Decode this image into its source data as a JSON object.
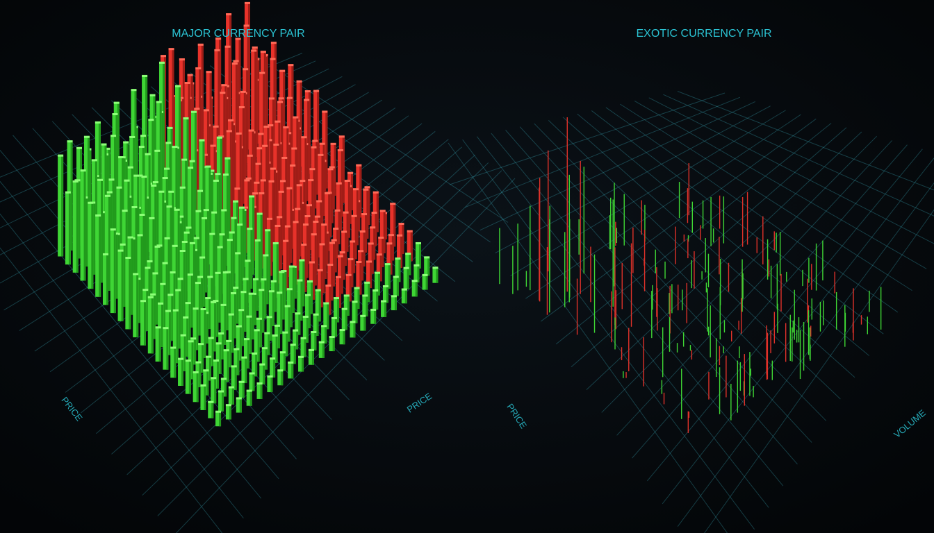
{
  "panels": [
    {
      "title": "MAJOR CURRENCY PAIR",
      "axis_labels": [
        "PRICE",
        "PRICE"
      ]
    },
    {
      "title": "EXOTIC CURRENCY PAIR",
      "axis_labels": [
        "PRICE",
        "VOLUME"
      ]
    }
  ]
}
